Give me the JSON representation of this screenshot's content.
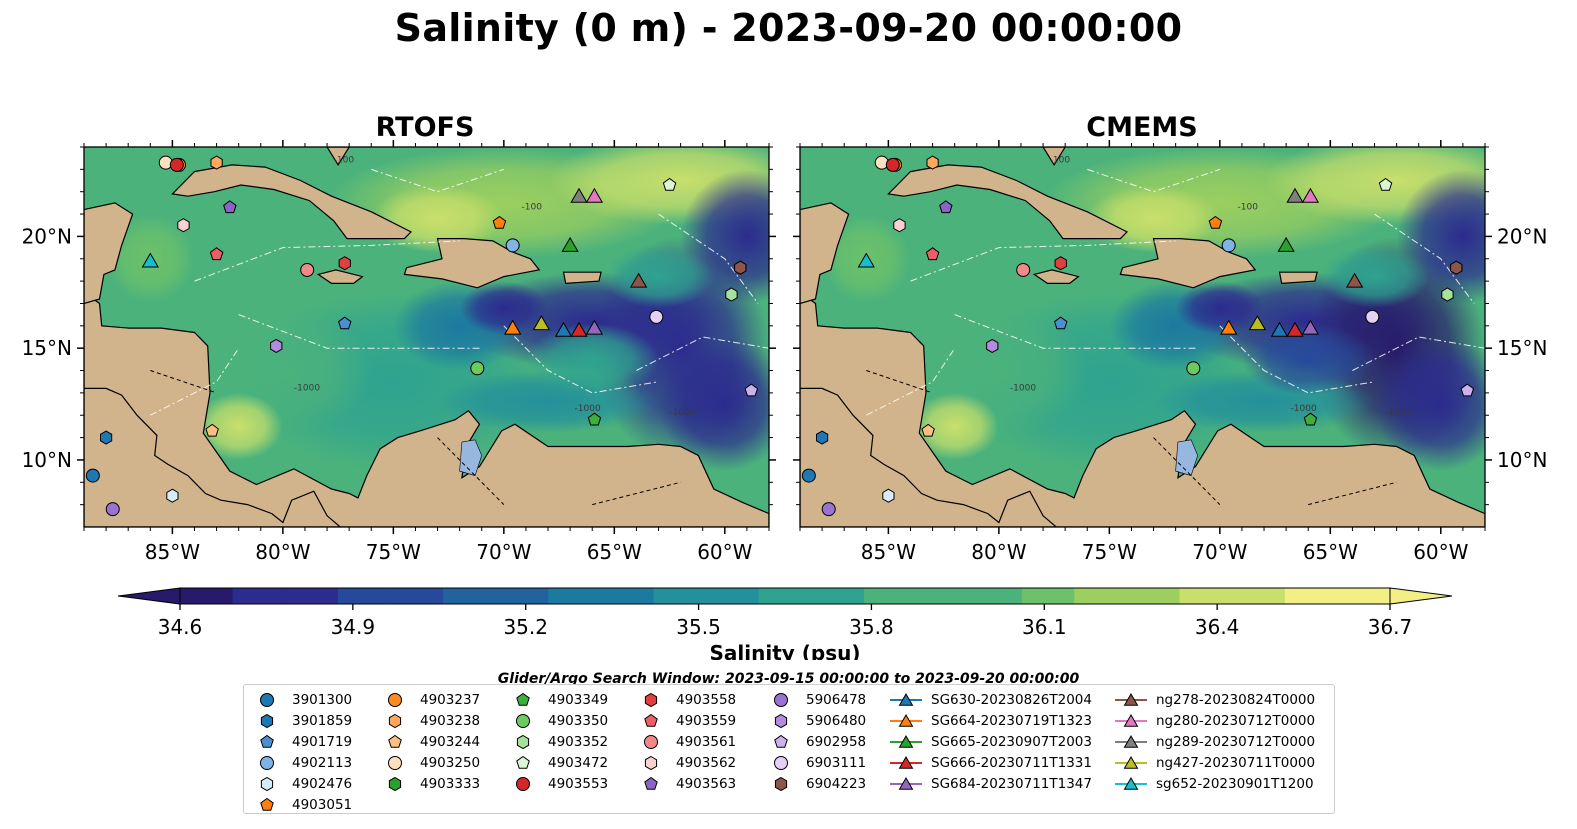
{
  "title": "Salinity (0 m) - 2023-09-20 00:00:00",
  "panels": [
    {
      "id": "rtofs",
      "title": "RTOFS"
    },
    {
      "id": "cmems",
      "title": "CMEMS"
    }
  ],
  "colorbar": {
    "label": "Salinity (psu)",
    "ticks": [
      "34.6",
      "34.9",
      "35.2",
      "35.5",
      "35.8",
      "36.1",
      "36.4",
      "36.7"
    ],
    "vmin": 34.6,
    "vmax": 36.7,
    "extend": "both"
  },
  "contour_labels": [
    "-100",
    "-1000",
    "-1000",
    "-100",
    "-1000"
  ],
  "legend": {
    "title": "Glider/Argo Search Window: 2023-09-15 00:00:00 to 2023-09-20 00:00:00",
    "items": [
      {
        "label": "3901300",
        "marker": "circle",
        "color": "#1f77b4"
      },
      {
        "label": "3901859",
        "marker": "hexagon",
        "color": "#1f77b4"
      },
      {
        "label": "4901719",
        "marker": "pentagon",
        "color": "#4a90d0"
      },
      {
        "label": "4902113",
        "marker": "circle",
        "color": "#7fb4e8"
      },
      {
        "label": "4902476",
        "marker": "hexagon",
        "color": "#d6ecfa"
      },
      {
        "label": "4903051",
        "marker": "pentagon",
        "color": "#ff7f0e"
      },
      {
        "label": "4903237",
        "marker": "circle",
        "color": "#ff8a1f"
      },
      {
        "label": "4903238",
        "marker": "hexagon",
        "color": "#ffa95e"
      },
      {
        "label": "4903244",
        "marker": "pentagon",
        "color": "#ffbf80"
      },
      {
        "label": "4903250",
        "marker": "circle",
        "color": "#ffe1bf"
      },
      {
        "label": "4903333",
        "marker": "hexagon",
        "color": "#2ca02c"
      },
      {
        "label": "4903349",
        "marker": "pentagon",
        "color": "#3cb03c"
      },
      {
        "label": "4903350",
        "marker": "circle",
        "color": "#6ccb5f"
      },
      {
        "label": "4903352",
        "marker": "hexagon",
        "color": "#a6e29a"
      },
      {
        "label": "4903472",
        "marker": "pentagon",
        "color": "#dcf5d5"
      },
      {
        "label": "4903553",
        "marker": "circle",
        "color": "#d62728"
      },
      {
        "label": "4903558",
        "marker": "hexagon",
        "color": "#e04040"
      },
      {
        "label": "4903559",
        "marker": "pentagon",
        "color": "#ec5f67"
      },
      {
        "label": "4903561",
        "marker": "circle",
        "color": "#f08a8a"
      },
      {
        "label": "4903562",
        "marker": "hexagon",
        "color": "#fbd0d0"
      },
      {
        "label": "4903563",
        "marker": "pentagon",
        "color": "#8a63c7"
      },
      {
        "label": "5906478",
        "marker": "circle",
        "color": "#9b72cf"
      },
      {
        "label": "5906480",
        "marker": "hexagon",
        "color": "#b38be0"
      },
      {
        "label": "6902958",
        "marker": "pentagon",
        "color": "#cdb0ee"
      },
      {
        "label": "6903111",
        "marker": "circle",
        "color": "#e4cff5"
      },
      {
        "label": "6904223",
        "marker": "hexagon",
        "color": "#8c564b"
      },
      {
        "label": "SG630-20230826T2004",
        "marker": "triangle-line",
        "color": "#1f77b4"
      },
      {
        "label": "SG664-20230719T1323",
        "marker": "triangle-line",
        "color": "#ff7f0e"
      },
      {
        "label": "SG665-20230907T2003",
        "marker": "triangle-line",
        "color": "#2ca02c"
      },
      {
        "label": "SG666-20230711T1331",
        "marker": "triangle-line",
        "color": "#d62728"
      },
      {
        "label": "SG684-20230711T1347",
        "marker": "triangle-line",
        "color": "#9467bd"
      },
      {
        "label": "ng278-20230824T0000",
        "marker": "triangle-line",
        "color": "#8c564b"
      },
      {
        "label": "ng280-20230712T0000",
        "marker": "triangle-line",
        "color": "#e377c2"
      },
      {
        "label": "ng289-20230712T0000",
        "marker": "triangle-line",
        "color": "#7f7f7f"
      },
      {
        "label": "ng427-20230711T0000",
        "marker": "triangle-line",
        "color": "#bcbd22"
      },
      {
        "label": "sg652-20230901T1200",
        "marker": "triangle-line",
        "color": "#17becf"
      }
    ]
  },
  "chart_data": {
    "type": "heatmap",
    "variable": "Salinity (psu)",
    "depth": "0 m",
    "time": "2023-09-20 00:00:00",
    "xlim": [
      -89,
      -58
    ],
    "ylim": [
      7,
      24
    ],
    "xticks": [
      -85,
      -80,
      -75,
      -70,
      -65,
      -60
    ],
    "xtick_labels": [
      "85°W",
      "80°W",
      "75°W",
      "70°W",
      "65°W",
      "60°W"
    ],
    "yticks": [
      10,
      15,
      20
    ],
    "ytick_labels": [
      "10°N",
      "15°N",
      "20°N"
    ],
    "color_range": [
      34.6,
      36.7
    ],
    "panels": [
      "RTOFS",
      "CMEMS"
    ],
    "observations": [
      {
        "id": "3901300",
        "lon": -88.6,
        "lat": 9.3
      },
      {
        "id": "3901859",
        "lon": -88.0,
        "lat": 11.0
      },
      {
        "id": "4901719",
        "lon": -77.2,
        "lat": 16.1
      },
      {
        "id": "4902113",
        "lon": -69.6,
        "lat": 19.6
      },
      {
        "id": "4902476",
        "lon": -85.0,
        "lat": 8.4
      },
      {
        "id": "4903051",
        "lon": -70.2,
        "lat": 20.6
      },
      {
        "id": "4903237",
        "lon": -84.7,
        "lat": 23.2
      },
      {
        "id": "4903238",
        "lon": -83.0,
        "lat": 23.3
      },
      {
        "id": "4903244",
        "lon": -83.2,
        "lat": 11.3
      },
      {
        "id": "4903250",
        "lon": -85.3,
        "lat": 23.3
      },
      {
        "id": "4903333",
        "lon": -59.3,
        "lat": 18.6
      },
      {
        "id": "4903349",
        "lon": -65.9,
        "lat": 11.8
      },
      {
        "id": "4903350",
        "lon": -71.2,
        "lat": 14.1
      },
      {
        "id": "4903352",
        "lon": -59.7,
        "lat": 17.4
      },
      {
        "id": "4903472",
        "lon": -62.5,
        "lat": 22.3
      },
      {
        "id": "4903553",
        "lon": -84.8,
        "lat": 23.2
      },
      {
        "id": "4903558",
        "lon": -77.2,
        "lat": 18.8
      },
      {
        "id": "4903559",
        "lon": -83.0,
        "lat": 19.2
      },
      {
        "id": "4903561",
        "lon": -78.9,
        "lat": 18.5
      },
      {
        "id": "4903562",
        "lon": -84.5,
        "lat": 20.5
      },
      {
        "id": "4903563",
        "lon": -82.4,
        "lat": 21.3
      },
      {
        "id": "5906478",
        "lon": -87.7,
        "lat": 7.8
      },
      {
        "id": "5906480",
        "lon": -80.3,
        "lat": 15.1
      },
      {
        "id": "6902958",
        "lon": -58.8,
        "lat": 13.1
      },
      {
        "id": "6903111",
        "lon": -63.1,
        "lat": 16.4
      },
      {
        "id": "6904223",
        "lon": -59.3,
        "lat": 18.6
      }
    ],
    "gliders": [
      {
        "id": "SG630-20230826T2004",
        "lon": -67.3,
        "lat": 15.8
      },
      {
        "id": "SG664-20230719T1323",
        "lon": -69.6,
        "lat": 15.9
      },
      {
        "id": "SG665-20230907T2003",
        "lon": -67.0,
        "lat": 19.6
      },
      {
        "id": "SG666-20230711T1331",
        "lon": -66.6,
        "lat": 15.8
      },
      {
        "id": "SG684-20230711T1347",
        "lon": -65.9,
        "lat": 15.9
      },
      {
        "id": "ng278-20230824T0000",
        "lon": -63.9,
        "lat": 18.0
      },
      {
        "id": "ng280-20230712T0000",
        "lon": -65.9,
        "lat": 21.8
      },
      {
        "id": "ng289-20230712T0000",
        "lon": -66.6,
        "lat": 21.8
      },
      {
        "id": "ng427-20230711T0000",
        "lon": -68.3,
        "lat": 16.1
      },
      {
        "id": "sg652-20230901T1200",
        "lon": -86.0,
        "lat": 18.9
      }
    ]
  }
}
